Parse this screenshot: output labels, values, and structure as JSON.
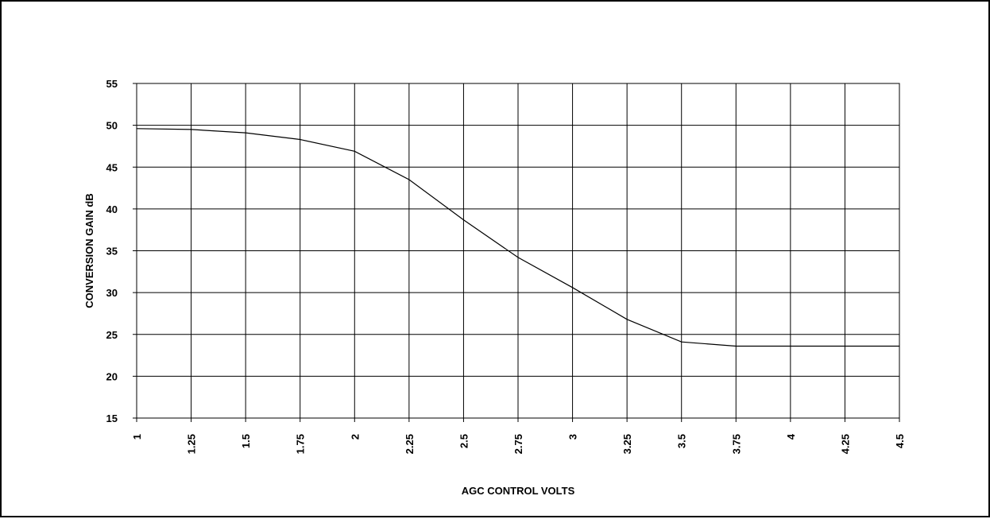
{
  "chart_data": {
    "type": "line",
    "title": "",
    "xlabel": "AGC CONTROL VOLTS",
    "ylabel": "CONVERSION GAIN dB",
    "xlim": [
      1,
      4.5
    ],
    "ylim": [
      15,
      55
    ],
    "x_ticks": [
      "1",
      "1.25",
      "1.5",
      "1.75",
      "2",
      "2.25",
      "2.5",
      "2.75",
      "3",
      "3.25",
      "3.5",
      "3.75",
      "4",
      "4.25",
      "4.5"
    ],
    "y_ticks": [
      "55",
      "50",
      "45",
      "40",
      "35",
      "30",
      "25",
      "20",
      "15"
    ],
    "grid": true,
    "legend": "none",
    "colors": {
      "line": "#000000",
      "grid": "#000000",
      "frame": "#000000",
      "background": "#ffffff"
    },
    "series": [
      {
        "x": [
          1,
          1.25,
          1.5,
          1.75,
          2,
          2.25,
          2.5,
          2.75,
          3,
          3.25,
          3.5,
          3.75,
          4,
          4.25,
          4.5
        ],
        "values": [
          49.6,
          49.5,
          49.1,
          48.3,
          46.9,
          43.5,
          38.7,
          34.2,
          30.6,
          26.8,
          24.1,
          23.6,
          23.6,
          23.6,
          23.6
        ]
      }
    ]
  }
}
